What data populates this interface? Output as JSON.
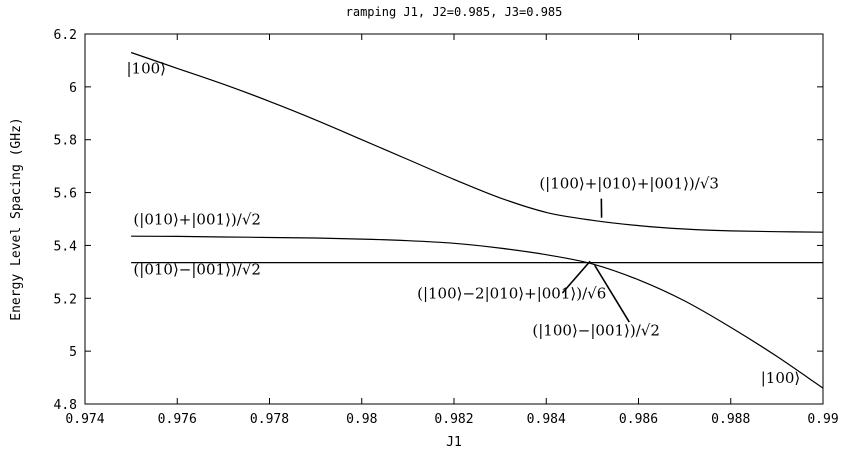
{
  "chart_data": {
    "type": "line",
    "title": "ramping J1, J2=0.985, J3=0.985",
    "xlabel": "J1",
    "ylabel": "Energy Level Spacing (GHz)",
    "xlim": [
      0.974,
      0.99
    ],
    "ylim": [
      4.8,
      6.2
    ],
    "grid": false,
    "xticks": [
      0.974,
      0.976,
      0.978,
      0.98,
      0.982,
      0.984,
      0.986,
      0.988,
      0.99
    ],
    "xtick_labels": [
      "0.974",
      "0.976",
      "0.978",
      "0.98",
      "0.982",
      "0.984",
      "0.986",
      "0.988",
      "0.99"
    ],
    "yticks": [
      4.8,
      5,
      5.2,
      5.4,
      5.6,
      5.8,
      6,
      6.2
    ],
    "ytick_labels": [
      "4.8",
      "5",
      "5.2",
      "5.4",
      "5.6",
      "5.8",
      "6",
      "6.2"
    ],
    "series": [
      {
        "x": [
          0.975,
          0.976,
          0.977,
          0.978,
          0.979,
          0.98,
          0.981,
          0.982,
          0.983,
          0.984,
          0.985,
          0.986,
          0.987,
          0.988,
          0.989,
          0.99
        ],
        "y": [
          6.13,
          6.07,
          6.01,
          5.945,
          5.875,
          5.8,
          5.725,
          5.65,
          5.58,
          5.525,
          5.495,
          5.475,
          5.462,
          5.455,
          5.452,
          5.45
        ]
      },
      {
        "x": [
          0.975,
          0.976,
          0.977,
          0.978,
          0.979,
          0.98,
          0.981,
          0.982,
          0.983,
          0.984,
          0.985,
          0.986,
          0.987,
          0.988,
          0.989,
          0.99
        ],
        "y": [
          5.435,
          5.434,
          5.432,
          5.43,
          5.428,
          5.424,
          5.418,
          5.408,
          5.39,
          5.365,
          5.33,
          5.27,
          5.19,
          5.09,
          4.98,
          4.86
        ]
      },
      {
        "x": [
          0.975,
          0.99
        ],
        "y": [
          5.335,
          5.335
        ]
      }
    ],
    "annotations": [
      {
        "text": "|100⟩",
        "x": 0.9749,
        "y": 6.05
      },
      {
        "text": "(|100⟩+|010⟩+|001⟩)/√3",
        "x": 0.98385,
        "y": 5.615,
        "arrow_to": [
          0.9852,
          5.505
        ]
      },
      {
        "text": "(|010⟩+|001⟩)/√2",
        "x": 0.97505,
        "y": 5.48
      },
      {
        "text": "(|010⟩−|001⟩)/√2",
        "x": 0.97505,
        "y": 5.29
      },
      {
        "text": "(|100⟩−2|010⟩+|001⟩)/√6",
        "x": 0.9812,
        "y": 5.2,
        "arrow_to": [
          0.98495,
          5.34
        ]
      },
      {
        "text": "(|100⟩−|001⟩)/√2",
        "x": 0.9837,
        "y": 5.06,
        "arrow_to": [
          0.98505,
          5.325
        ]
      },
      {
        "text": "|100⟩",
        "x": 0.98865,
        "y": 4.88
      }
    ],
    "colors": {
      "line": "#000000",
      "axis": "#000000",
      "background": "#ffffff"
    }
  }
}
